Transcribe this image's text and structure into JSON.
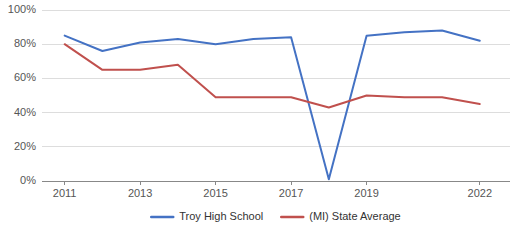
{
  "chart_data": {
    "type": "line",
    "x": [
      2011,
      2012,
      2013,
      2014,
      2015,
      2016,
      2017,
      2018,
      2019,
      2020,
      2021,
      2022
    ],
    "series": [
      {
        "name": "Troy High School",
        "color": "#4472C4",
        "values": [
          0.85,
          0.76,
          0.81,
          0.83,
          0.8,
          0.83,
          0.84,
          0.01,
          0.85,
          0.87,
          0.88,
          0.82
        ]
      },
      {
        "name": "(MI) State Average",
        "color": "#C0504D",
        "values": [
          0.8,
          0.65,
          0.65,
          0.68,
          0.49,
          0.49,
          0.49,
          0.43,
          0.5,
          0.49,
          0.49,
          0.45
        ]
      }
    ],
    "xlim": [
      2010.4,
      2022.8
    ],
    "xticks": [
      2011,
      2013,
      2015,
      2017,
      2019,
      2022
    ],
    "ylim": [
      0,
      1.0
    ],
    "yticks": [
      {
        "value": 0.0,
        "label": "0%"
      },
      {
        "value": 0.2,
        "label": "20%"
      },
      {
        "value": 0.4,
        "label": "40%"
      },
      {
        "value": 0.6,
        "label": "60%"
      },
      {
        "value": 0.8,
        "label": "80%"
      },
      {
        "value": 1.0,
        "label": "100%"
      }
    ],
    "grid": true,
    "legend": "bottom"
  }
}
